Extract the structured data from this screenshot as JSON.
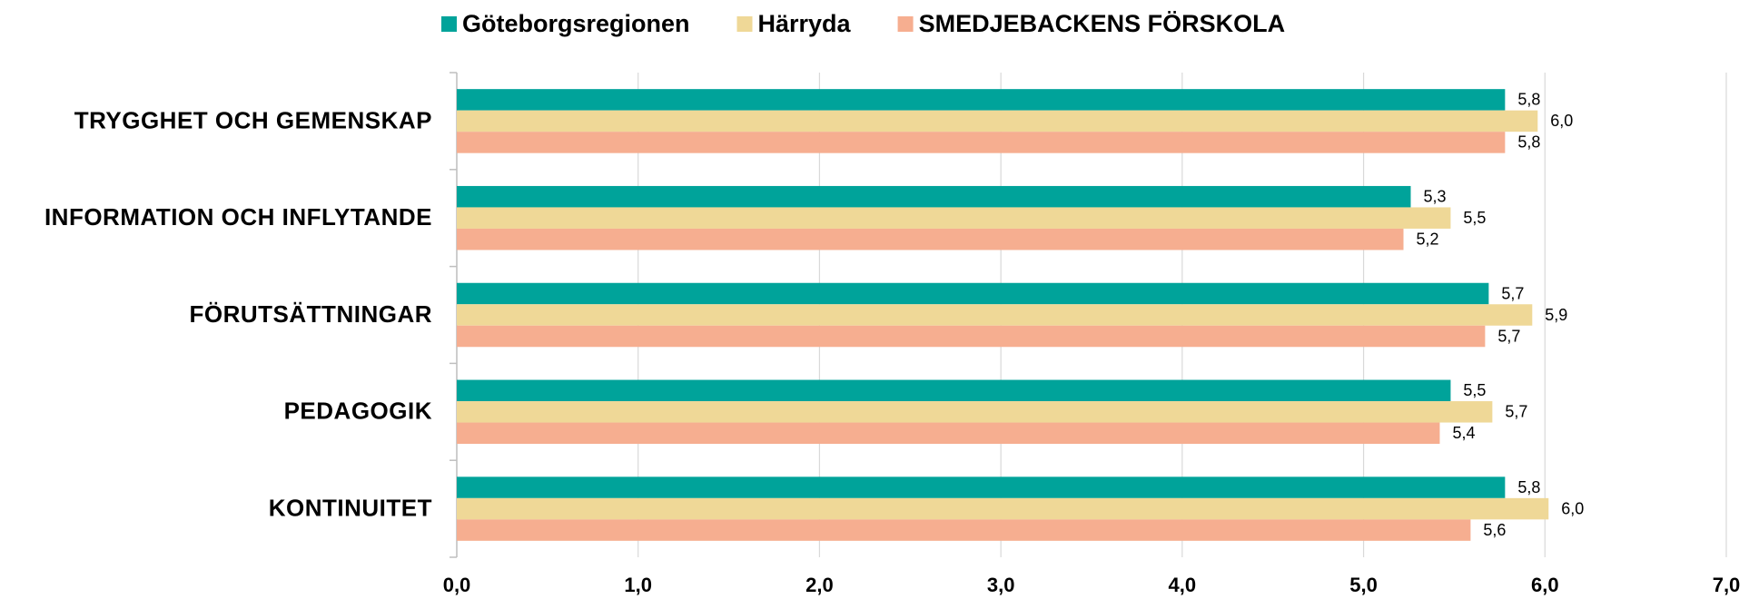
{
  "chart_data": {
    "type": "hbar",
    "categories": [
      "TRYGGHET OCH GEMENSKAP",
      "INFORMATION OCH INFLYTANDE",
      "FÖRUTSÄTTNINGAR",
      "PEDAGOGIK",
      "KONTINUITET"
    ],
    "series": [
      {
        "name": "Göteborgsregionen",
        "color": "#00a39a",
        "values": [
          5.78,
          5.26,
          5.69,
          5.48,
          5.78
        ],
        "value_labels": [
          "5,8",
          "5,3",
          "5,7",
          "5,5",
          "5,8"
        ]
      },
      {
        "name": "Härryda",
        "color": "#efd897",
        "values": [
          5.96,
          5.48,
          5.93,
          5.71,
          6.02
        ],
        "value_labels": [
          "6,0",
          "5,5",
          "5,9",
          "5,7",
          "6,0"
        ]
      },
      {
        "name": "SMEDJEBACKENS FÖRSKOLA",
        "color": "#f6ae90",
        "values": [
          5.78,
          5.22,
          5.67,
          5.42,
          5.59
        ],
        "value_labels": [
          "5,8",
          "5,2",
          "5,7",
          "5,4",
          "5,6"
        ]
      }
    ],
    "xlim": [
      0,
      7
    ],
    "xticks": [
      {
        "value": 0,
        "label": "0,0"
      },
      {
        "value": 1,
        "label": "1,0"
      },
      {
        "value": 2,
        "label": "2,0"
      },
      {
        "value": 3,
        "label": "3,0"
      },
      {
        "value": 4,
        "label": "4,0"
      },
      {
        "value": 5,
        "label": "5,0"
      },
      {
        "value": 6,
        "label": "6,0"
      },
      {
        "value": 7,
        "label": "7,0"
      }
    ],
    "grid": true,
    "legend": "top"
  }
}
